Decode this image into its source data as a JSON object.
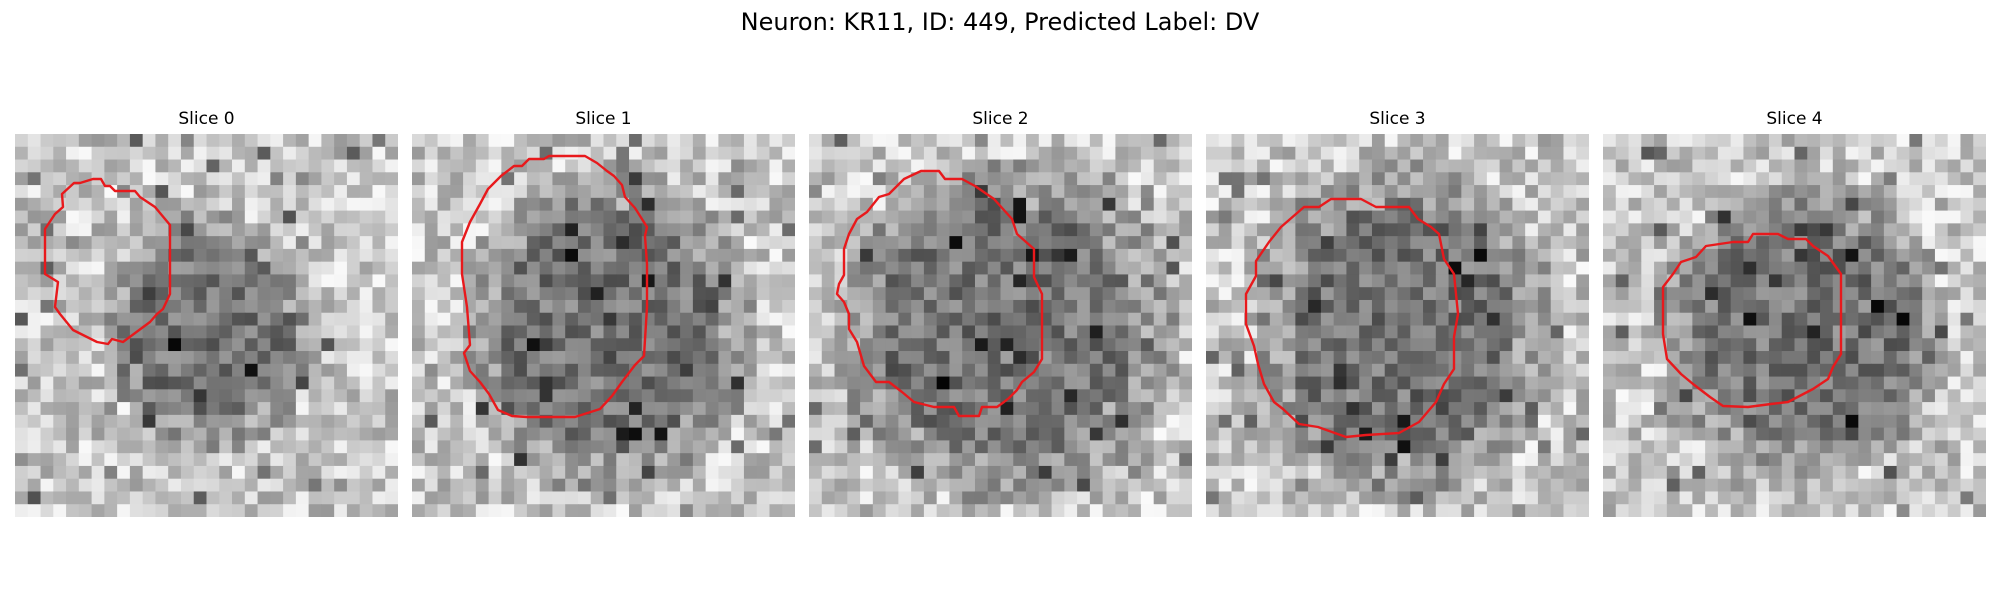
{
  "figure": {
    "title": "Neuron: KR11, ID: 449, Predicted Label: DV",
    "contour_color": "#e8191c",
    "panels": [
      {
        "title": "Slice 0"
      },
      {
        "title": "Slice 1"
      },
      {
        "title": "Slice 2"
      },
      {
        "title": "Slice 3"
      },
      {
        "title": "Slice 4"
      }
    ]
  }
}
